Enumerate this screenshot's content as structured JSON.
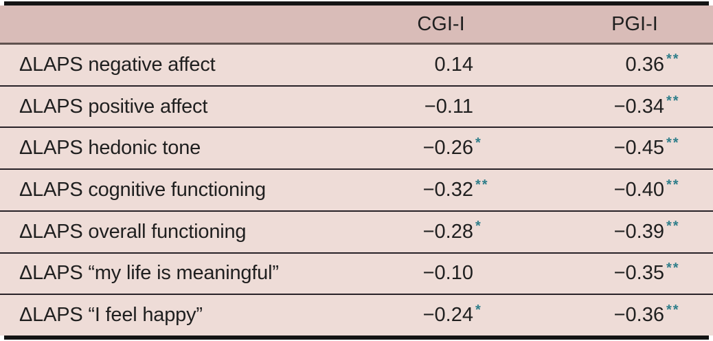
{
  "table": {
    "columns": [
      {
        "label": ""
      },
      {
        "label": "CGI-I"
      },
      {
        "label": "PGI-I"
      }
    ],
    "rows": [
      {
        "label": "ΔLAPS negative affect",
        "cgi": {
          "value": "0.14",
          "sig": ""
        },
        "pgi": {
          "value": "0.36",
          "sig": "**"
        }
      },
      {
        "label": "ΔLAPS positive affect",
        "cgi": {
          "value": "−0.11",
          "sig": ""
        },
        "pgi": {
          "value": "−0.34",
          "sig": "**"
        }
      },
      {
        "label": "ΔLAPS hedonic tone",
        "cgi": {
          "value": "−0.26",
          "sig": "*"
        },
        "pgi": {
          "value": "−0.45",
          "sig": "**"
        }
      },
      {
        "label": "ΔLAPS cognitive functioning",
        "cgi": {
          "value": "−0.32",
          "sig": "**"
        },
        "pgi": {
          "value": "−0.40",
          "sig": "**"
        }
      },
      {
        "label": "ΔLAPS overall functioning",
        "cgi": {
          "value": "−0.28",
          "sig": "*"
        },
        "pgi": {
          "value": "−0.39",
          "sig": "**"
        }
      },
      {
        "label": "ΔLAPS “my life is meaningful”",
        "cgi": {
          "value": "−0.10",
          "sig": ""
        },
        "pgi": {
          "value": "−0.35",
          "sig": "**"
        }
      },
      {
        "label": "ΔLAPS “I feel happy”",
        "cgi": {
          "value": "−0.24",
          "sig": "*"
        },
        "pgi": {
          "value": "−0.36",
          "sig": "**"
        }
      }
    ],
    "colors": {
      "header_bg": "#d9bcb8",
      "row_bg": "#eedcd7",
      "rule_heavy": "#141414",
      "rule_header": "#60524f",
      "rule_row": "#272127",
      "text": "#1f1f1f",
      "significance": "#2f7e8a"
    }
  }
}
